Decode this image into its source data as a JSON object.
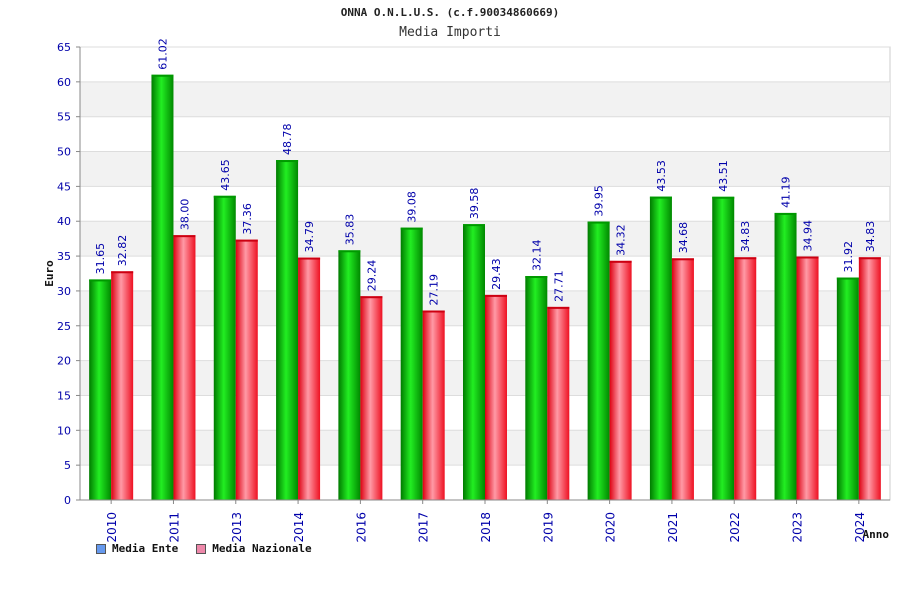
{
  "chart_data": {
    "type": "bar",
    "title": "ONNA O.N.L.U.S. (c.f.90034860669)",
    "subtitle": "Media Importi",
    "xlabel": "Anno",
    "ylabel": "Euro",
    "ylim": [
      0,
      65
    ],
    "yticks": [
      0,
      5,
      10,
      15,
      20,
      25,
      30,
      35,
      40,
      45,
      50,
      55,
      60,
      65
    ],
    "categories": [
      "2010",
      "2011",
      "2013",
      "2014",
      "2016",
      "2017",
      "2018",
      "2019",
      "2020",
      "2021",
      "2022",
      "2023",
      "2024"
    ],
    "series": [
      {
        "name": "Media Ente",
        "color": "#00aa00",
        "legend_color": "#6699ee",
        "values": [
          31.65,
          61.02,
          43.65,
          48.78,
          35.83,
          39.08,
          39.58,
          32.14,
          39.95,
          43.53,
          43.51,
          41.19,
          31.92
        ],
        "labels": [
          "31.65",
          "61.02",
          "43.65",
          "48.78",
          "35.83",
          "39.08",
          "39.58",
          "32.14",
          "39.95",
          "43.53",
          "43.51",
          "41.19",
          "31.92"
        ]
      },
      {
        "name": "Media Nazionale",
        "color": "#ee1122",
        "legend_color": "#ee88aa",
        "values": [
          32.82,
          38.0,
          37.36,
          34.79,
          29.24,
          27.19,
          29.43,
          27.71,
          34.32,
          34.68,
          34.83,
          34.94,
          34.83
        ],
        "labels": [
          "32.82",
          "38.00",
          "37.36",
          "34.79",
          "29.24",
          "27.19",
          "29.43",
          "27.71",
          "34.32",
          "34.68",
          "34.83",
          "34.94",
          "34.83"
        ]
      }
    ],
    "grid": true,
    "legend_position": "bottom-left"
  }
}
